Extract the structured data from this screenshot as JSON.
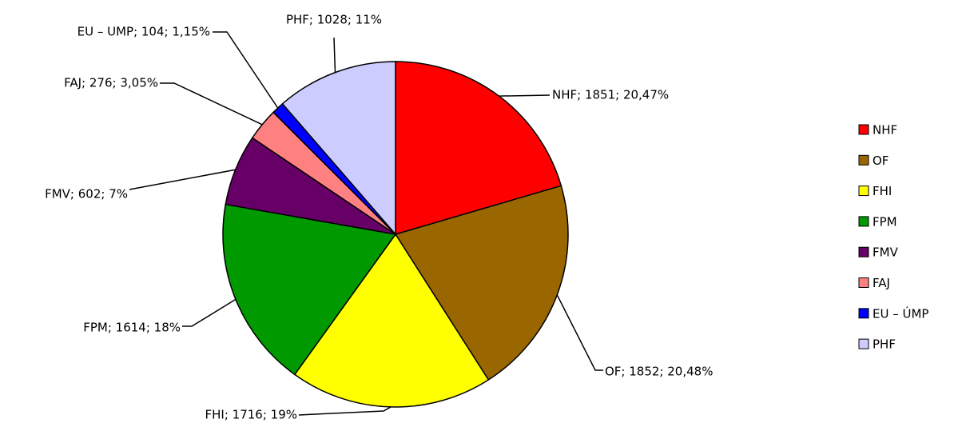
{
  "chart_data": {
    "type": "pie",
    "categories": [
      "NHF",
      "OF",
      "FHI",
      "FPM",
      "FMV",
      "FAJ",
      "EU – ÚMP",
      "PHF"
    ],
    "values": [
      1851,
      1852,
      1716,
      1614,
      602,
      276,
      104,
      1028
    ],
    "value_labels": [
      "NHF; 1851; 20,47%",
      "OF; 1852; 20,48%",
      "FHI; 1716; 19%",
      "FPM; 1614; 18%",
      "FMV; 602; 7%",
      "FAJ; 276; 3,05%",
      "EU – UMP; 104; 1,15%",
      "PHF; 1028; 11%"
    ],
    "colors": [
      "#ff0000",
      "#996600",
      "#ffff00",
      "#009900",
      "#660066",
      "#ff8080",
      "#0000ff",
      "#ccccff"
    ],
    "legend": "right"
  }
}
